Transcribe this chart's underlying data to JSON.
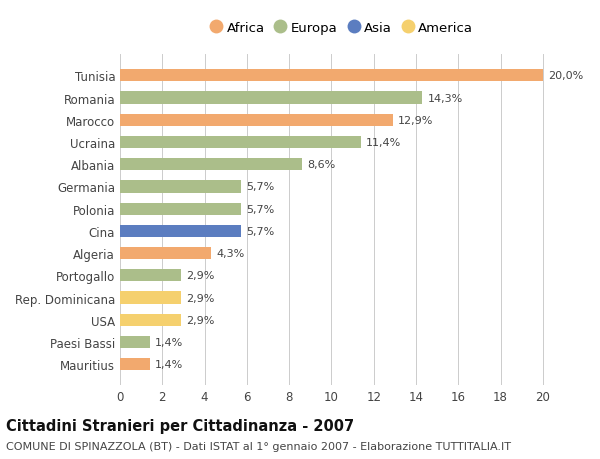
{
  "categories": [
    "Tunisia",
    "Romania",
    "Marocco",
    "Ucraina",
    "Albania",
    "Germania",
    "Polonia",
    "Cina",
    "Algeria",
    "Portogallo",
    "Rep. Dominicana",
    "USA",
    "Paesi Bassi",
    "Mauritius"
  ],
  "values": [
    20.0,
    14.3,
    12.9,
    11.4,
    8.6,
    5.7,
    5.7,
    5.7,
    4.3,
    2.9,
    2.9,
    2.9,
    1.4,
    1.4
  ],
  "labels": [
    "20,0%",
    "14,3%",
    "12,9%",
    "11,4%",
    "8,6%",
    "5,7%",
    "5,7%",
    "5,7%",
    "4,3%",
    "2,9%",
    "2,9%",
    "2,9%",
    "1,4%",
    "1,4%"
  ],
  "continents": [
    "Africa",
    "Europa",
    "Africa",
    "Europa",
    "Europa",
    "Europa",
    "Europa",
    "Asia",
    "Africa",
    "Europa",
    "America",
    "America",
    "Europa",
    "Africa"
  ],
  "colors": {
    "Africa": "#F2A96E",
    "Europa": "#ABBE8A",
    "Asia": "#5B7DC0",
    "America": "#F5D06E"
  },
  "legend_order": [
    "Africa",
    "Europa",
    "Asia",
    "America"
  ],
  "xlim": [
    0,
    21
  ],
  "xticks": [
    0,
    2,
    4,
    6,
    8,
    10,
    12,
    14,
    16,
    18,
    20
  ],
  "title": "Cittadini Stranieri per Cittadinanza - 2007",
  "subtitle": "COMUNE DI SPINAZZOLA (BT) - Dati ISTAT al 1° gennaio 2007 - Elaborazione TUTTITALIA.IT",
  "background_color": "#ffffff",
  "grid_color": "#cccccc",
  "bar_height": 0.55,
  "title_fontsize": 10.5,
  "subtitle_fontsize": 8,
  "label_fontsize": 8,
  "tick_fontsize": 8.5,
  "legend_fontsize": 9.5
}
